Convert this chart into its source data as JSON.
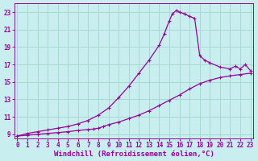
{
  "xlabel": "Windchill (Refroidissement éolien,°C)",
  "bg_color": "#c8eef0",
  "grid_color": "#a8d8d0",
  "line_color": "#990099",
  "xlim": [
    -0.3,
    23.3
  ],
  "ylim": [
    8.5,
    24.0
  ],
  "xticks": [
    0,
    1,
    2,
    3,
    4,
    5,
    6,
    7,
    8,
    9,
    10,
    11,
    12,
    13,
    14,
    15,
    16,
    17,
    18,
    19,
    20,
    21,
    22,
    23
  ],
  "yticks": [
    9,
    11,
    13,
    15,
    17,
    19,
    21,
    23
  ],
  "line1_x": [
    0,
    1,
    2,
    3,
    4,
    5,
    6,
    7,
    8,
    9,
    10,
    11,
    12,
    13,
    14,
    14.5,
    15,
    15.3,
    15.7,
    16,
    16.5,
    17,
    17.5,
    18,
    18.5,
    19,
    20,
    21,
    21.5,
    22,
    22.5,
    23
  ],
  "line1_y": [
    8.8,
    9.1,
    9.3,
    9.5,
    9.7,
    9.9,
    10.2,
    10.6,
    11.2,
    12.0,
    13.2,
    14.5,
    16.0,
    17.5,
    19.2,
    20.5,
    22.0,
    22.8,
    23.2,
    23.0,
    22.8,
    22.5,
    22.3,
    18.0,
    17.5,
    17.2,
    16.7,
    16.5,
    16.8,
    16.5,
    17.0,
    16.3
  ],
  "line2_x": [
    0,
    1,
    2,
    3,
    4,
    5,
    6,
    7,
    7.5,
    8,
    8.5,
    9,
    10,
    11,
    12,
    13,
    14,
    15,
    16,
    17,
    18,
    19,
    20,
    21,
    22,
    23
  ],
  "line2_y": [
    8.8,
    8.9,
    9.0,
    9.1,
    9.2,
    9.3,
    9.45,
    9.55,
    9.6,
    9.7,
    9.9,
    10.1,
    10.4,
    10.8,
    11.2,
    11.7,
    12.3,
    12.9,
    13.5,
    14.2,
    14.8,
    15.2,
    15.5,
    15.7,
    15.85,
    16.0
  ],
  "tick_fontsize": 5.5,
  "xlabel_fontsize": 6.5
}
